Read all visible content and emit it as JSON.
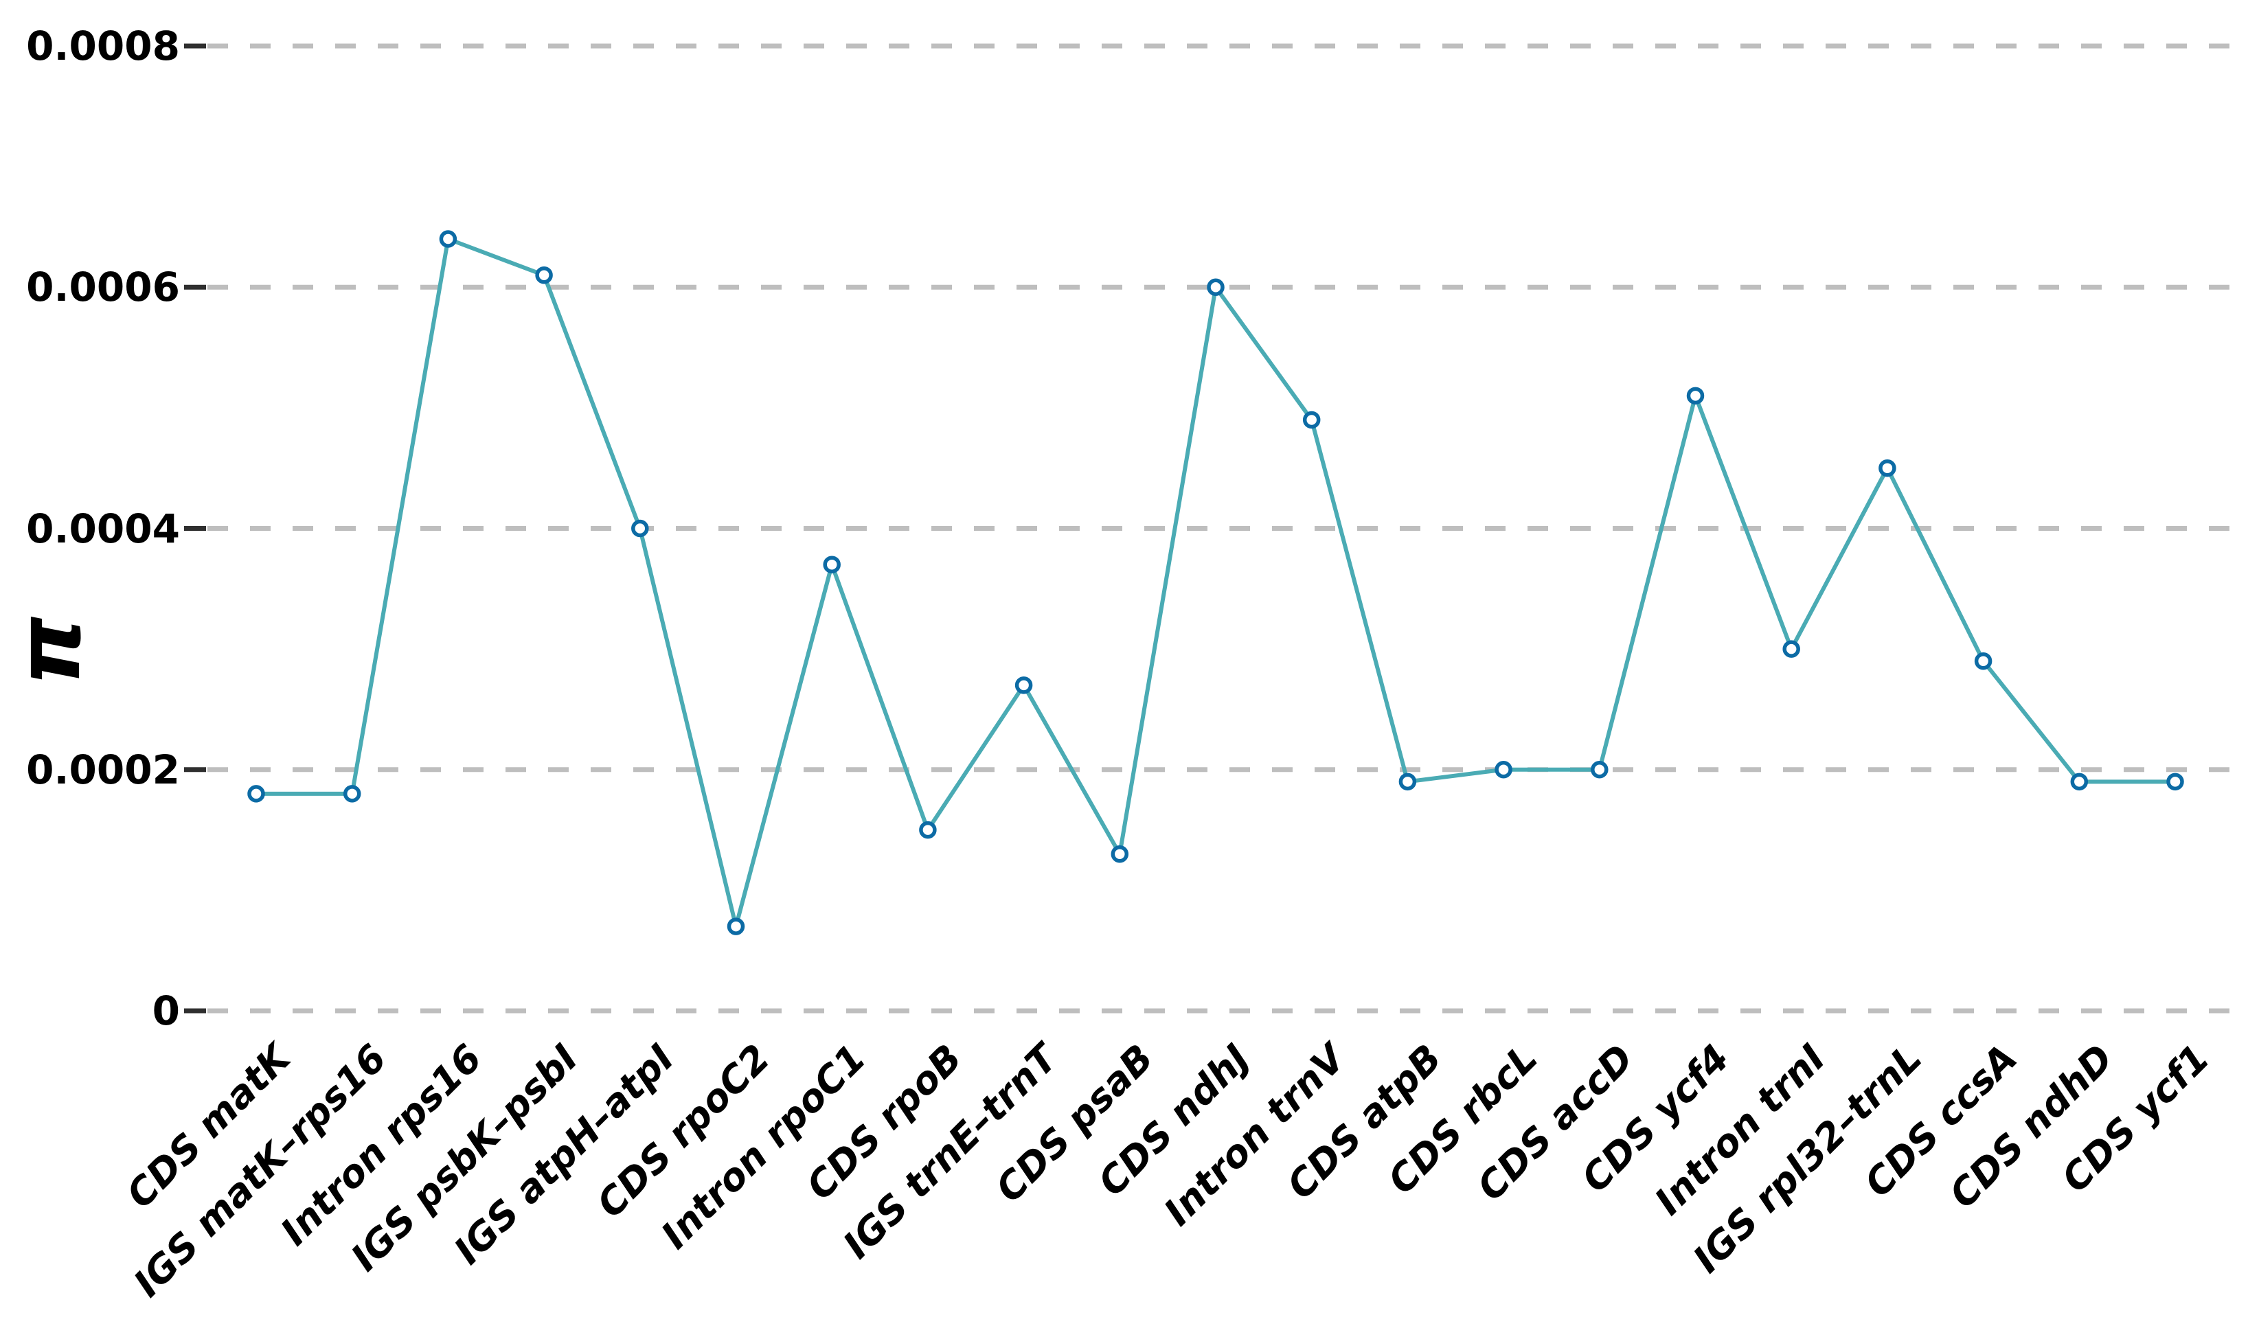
{
  "chart_data": {
    "type": "line",
    "title": "",
    "xlabel": "",
    "ylabel": "π",
    "categories": [
      "CDS matK",
      "IGS matK–rps16",
      "Intron rps16",
      "IGS psbK–psbI",
      "IGS atpH–atpI",
      "CDS rpoC2",
      "Intron rpoC1",
      "CDS rpoB",
      "IGS trnE–trnT",
      "CDS psaB",
      "CDS ndhJ",
      "Intron trnV",
      "CDS atpB",
      "CDS rbcL",
      "CDS accD",
      "CDS ycf4",
      "Intron trnI",
      "IGS rpl32–trnL",
      "CDS ccsA",
      "CDS ndhD",
      "CDS ycf1"
    ],
    "series": [
      {
        "name": "nucleotide diversity (π)",
        "values": [
          0.00018,
          0.00018,
          0.00064,
          0.00061,
          0.0004,
          7e-05,
          0.00037,
          0.00015,
          0.00027,
          0.00013,
          0.0006,
          0.00049,
          0.00019,
          0.0002,
          0.0002,
          0.00051,
          0.0003,
          0.00045,
          0.00029,
          0.00019,
          0.00019
        ]
      }
    ],
    "ylim": [
      0,
      0.0008
    ],
    "yticks": [
      0,
      0.0002,
      0.0004,
      0.0006,
      0.0008
    ],
    "ytick_labels": [
      "0",
      "0.0002",
      "0.0004",
      "0.0006",
      "0.0008"
    ],
    "grid": "horizontal-dashed",
    "legend_position": "none",
    "marker": "open-circle",
    "colors": {
      "line": "#4AABB4",
      "marker_stroke": "#0C6BA5",
      "marker_fill": "#ffffff",
      "grid": "#BEBEBE",
      "axis_tick": "#2F2F2F",
      "text": "#000000"
    }
  }
}
